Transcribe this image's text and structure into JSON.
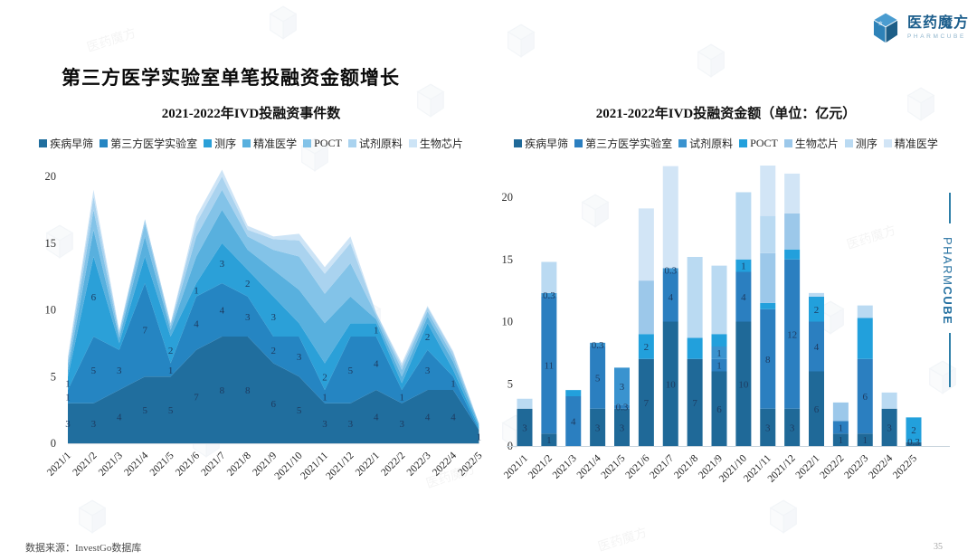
{
  "page": {
    "title": "第三方医学实验室单笔投融资金额增长",
    "source_note": "数据来源：InvestGo数据库",
    "page_number": "35",
    "logo": {
      "name": "医药魔方",
      "subtitle": "PHARMCUBE"
    },
    "side_brand": {
      "top": "PHARM",
      "bottom": "CUBE"
    }
  },
  "chart_data": [
    {
      "type": "area",
      "stacked": true,
      "title": "2021-2022年IVD投融资事件数",
      "categories": [
        "2021/1",
        "2021/2",
        "2021/3",
        "2021/4",
        "2021/5",
        "2021/6",
        "2021/7",
        "2021/8",
        "2021/9",
        "2021/10",
        "2021/11",
        "2021/12",
        "2022/1",
        "2022/2",
        "2022/3",
        "2022/4",
        "2022/5"
      ],
      "xlabel": "",
      "ylabel": "",
      "ylim": [
        0,
        20
      ],
      "yticks": [
        0,
        5,
        10,
        15,
        20
      ],
      "grid": false,
      "legend_position": "top",
      "series": [
        {
          "name": "疾病早筛",
          "color": "#206e9e",
          "values": [
            3,
            3,
            4,
            5,
            5,
            7,
            8,
            8,
            6,
            5,
            3,
            3,
            4,
            3,
            4,
            4,
            1
          ],
          "labels": [
            "3",
            "3",
            "4",
            "5",
            "5",
            "7",
            "8",
            "8",
            "6",
            "5",
            "3",
            "3",
            "4",
            "3",
            "4",
            "4",
            "1"
          ]
        },
        {
          "name": "第三方医学实验室",
          "color": "#2585c2",
          "values": [
            1,
            5,
            3,
            7,
            1,
            4,
            4,
            3,
            2,
            3,
            1,
            5,
            4,
            1,
            3,
            1,
            0
          ],
          "labels": [
            "1",
            "5",
            "3",
            "7",
            "1",
            "4",
            "4",
            "3",
            "2",
            "3",
            "1",
            "5",
            "4",
            "1",
            "3",
            "1",
            null
          ]
        },
        {
          "name": "测序",
          "color": "#2ba0d8",
          "values": [
            1,
            6,
            0.5,
            2,
            2,
            1,
            3,
            2,
            3,
            1,
            2,
            1,
            1,
            0.5,
            2,
            0.5,
            0.2
          ],
          "labels": [
            "1",
            "6",
            null,
            null,
            "2",
            "1",
            "3",
            "2",
            "3",
            null,
            "2",
            null,
            "1",
            null,
            "2",
            null,
            null
          ]
        },
        {
          "name": "精准医学",
          "color": "#58b0de",
          "values": [
            0.5,
            2,
            0.4,
            1.5,
            0.5,
            2,
            2.5,
            1.5,
            2,
            2.5,
            3,
            2,
            0.3,
            0.5,
            0.5,
            0.6,
            0.2
          ]
        },
        {
          "name": "POCT",
          "color": "#83c3e8",
          "values": [
            0.5,
            1.5,
            0.3,
            1,
            0.3,
            1.5,
            1.5,
            1,
            1.5,
            2.5,
            2.2,
            2.5,
            0.3,
            0.5,
            0.4,
            0.4,
            0.1
          ]
        },
        {
          "name": "试剂原料",
          "color": "#aad3ef",
          "values": [
            0.3,
            1,
            0.2,
            0.3,
            0.2,
            1,
            1,
            0.5,
            0.8,
            1.2,
            1.5,
            1.5,
            0.2,
            0.3,
            0.3,
            0.3,
            0
          ]
        },
        {
          "name": "生物芯片",
          "color": "#cde4f6",
          "values": [
            0.2,
            0.5,
            0.1,
            0,
            0,
            0.5,
            0.5,
            0.3,
            0.2,
            0.5,
            0.5,
            0.5,
            0,
            0.2,
            0.1,
            0.1,
            0
          ]
        }
      ]
    },
    {
      "type": "bar",
      "stacked": true,
      "title": "2021-2022年IVD投融资金额（单位：亿元）",
      "categories": [
        "2021/1",
        "2021/2",
        "2021/3",
        "2021/4",
        "2021/5",
        "2021/6",
        "2021/7",
        "2021/8",
        "2021/9",
        "2021/10",
        "2021/11",
        "2021/12",
        "2022/1",
        "2022/2",
        "2022/3",
        "2022/4",
        "2022/5"
      ],
      "xlabel": "",
      "ylabel": "",
      "ylim": [
        0,
        20
      ],
      "yticks": [
        0,
        5,
        10,
        15,
        20
      ],
      "grid": false,
      "legend_position": "top",
      "series": [
        {
          "name": "疾病早筛",
          "color": "#1f6998",
          "values": [
            3,
            1,
            0,
            3,
            3,
            7,
            10,
            7,
            6,
            10,
            3,
            3,
            6,
            1,
            1,
            3,
            0.3
          ],
          "labels": [
            "3",
            "1",
            null,
            "3",
            "3",
            "7",
            "10",
            "7",
            "6",
            "10",
            "3",
            "3",
            "6",
            "1",
            "1",
            "3",
            "0.3"
          ]
        },
        {
          "name": "第三方医学实验室",
          "color": "#2b7fc0",
          "values": [
            0,
            11,
            4,
            5,
            0.3,
            0,
            4,
            0,
            1,
            4,
            8,
            12,
            4,
            1,
            6,
            0,
            0
          ],
          "labels": [
            null,
            "11",
            "4",
            "5",
            "0.3",
            null,
            "4",
            null,
            "1",
            "4",
            "8",
            "12",
            "4",
            "1",
            "6",
            null,
            null
          ]
        },
        {
          "name": "试剂原料",
          "color": "#3a93cf",
          "values": [
            0,
            0.3,
            0,
            0.3,
            3,
            0,
            0.3,
            0,
            1,
            0,
            0,
            0,
            0,
            0,
            0,
            0,
            0
          ],
          "labels": [
            null,
            "0.3",
            null,
            "0.3",
            "3",
            null,
            "0.3",
            null,
            "1",
            null,
            null,
            null,
            null,
            null,
            null,
            null,
            null
          ]
        },
        {
          "name": "POCT",
          "color": "#22a0dc",
          "values": [
            0,
            0,
            0.5,
            0,
            0,
            2,
            0,
            1.7,
            1,
            1,
            0.5,
            0.8,
            2,
            0,
            3.3,
            0,
            2
          ],
          "labels": [
            null,
            null,
            null,
            null,
            null,
            "2",
            null,
            null,
            null,
            "1",
            null,
            null,
            "2",
            null,
            null,
            null,
            "2"
          ]
        },
        {
          "name": "生物芯片",
          "color": "#9cc8ea",
          "values": [
            0,
            0,
            0,
            0,
            0,
            4.3,
            0,
            0,
            0,
            0,
            4,
            2.9,
            0,
            1.5,
            0,
            0,
            0
          ]
        },
        {
          "name": "测序",
          "color": "#badaf2",
          "values": [
            0.8,
            2.5,
            0,
            0,
            0,
            0,
            0,
            6.5,
            5.5,
            5.4,
            3,
            0,
            0.3,
            0,
            1,
            1.3,
            0
          ]
        },
        {
          "name": "精准医学",
          "color": "#d2e5f6",
          "values": [
            0,
            0,
            0,
            0,
            0,
            5.8,
            8.2,
            0,
            0,
            0,
            4.3,
            3.2,
            0,
            0,
            0,
            0,
            0
          ]
        }
      ]
    }
  ]
}
